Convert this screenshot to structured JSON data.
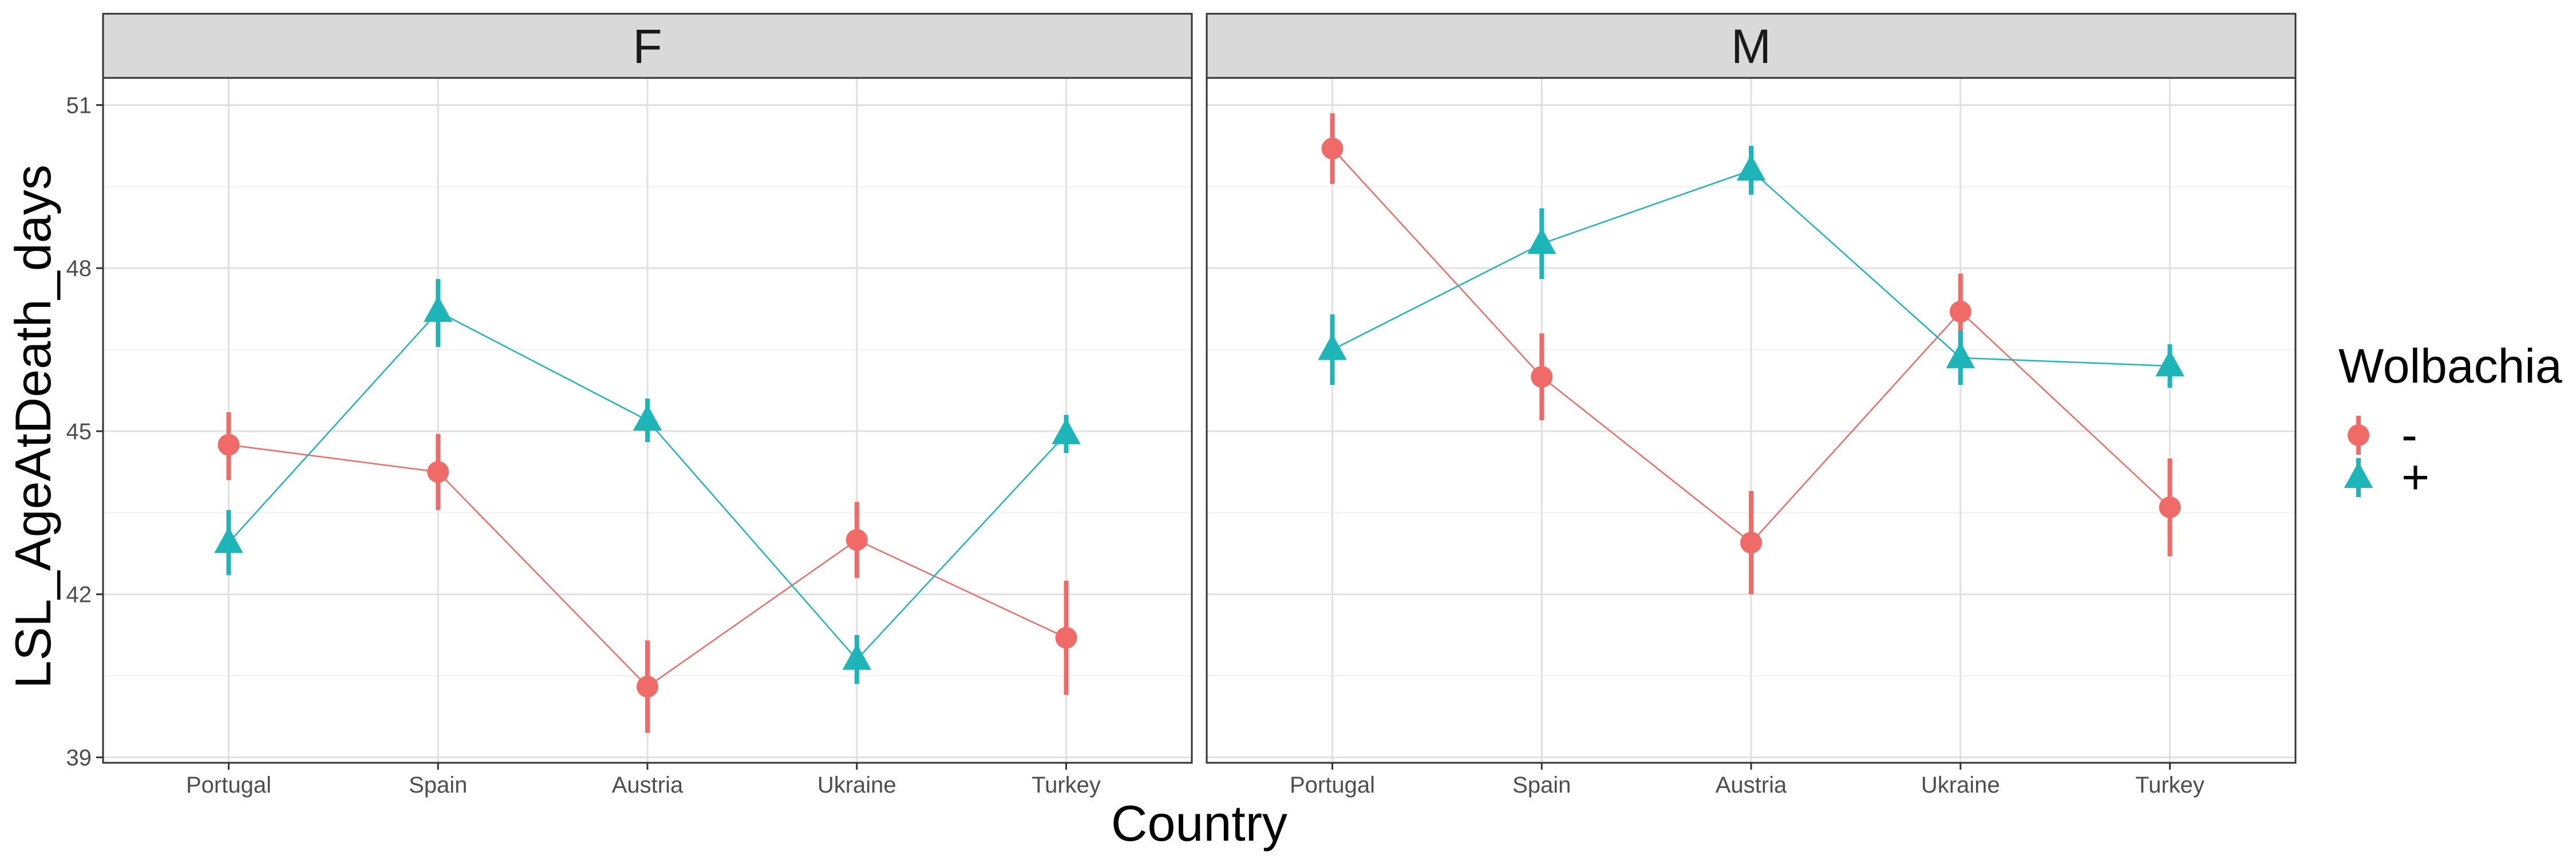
{
  "chart_data": {
    "type": "line",
    "xlabel": "Country",
    "ylabel": "LSL_AgeAtDeath_days",
    "categories": [
      "Portugal",
      "Spain",
      "Austria",
      "Ukraine",
      "Turkey"
    ],
    "ylim": [
      38.9,
      51.5
    ],
    "yticks": [
      39,
      42,
      45,
      48,
      51
    ],
    "grid": true,
    "facets": [
      "F",
      "M"
    ],
    "legend": {
      "title": "Wolbachia",
      "position": "right",
      "entries": [
        {
          "label": "-",
          "color": "#F06B68",
          "shape": "circle"
        },
        {
          "label": "+",
          "color": "#1DB5B8",
          "shape": "triangle"
        }
      ]
    },
    "series": [
      {
        "facet": "F",
        "group": "-",
        "color": "#F06B68",
        "shape": "circle",
        "values": [
          44.75,
          44.25,
          40.3,
          43.0,
          41.2
        ],
        "lower": [
          44.1,
          43.55,
          39.45,
          42.3,
          40.15
        ],
        "upper": [
          45.35,
          44.95,
          41.15,
          43.7,
          42.25
        ]
      },
      {
        "facet": "F",
        "group": "+",
        "color": "#1DB5B8",
        "shape": "triangle",
        "values": [
          42.95,
          47.2,
          45.2,
          40.8,
          44.95
        ],
        "lower": [
          42.35,
          46.55,
          44.8,
          40.35,
          44.6
        ],
        "upper": [
          43.55,
          47.8,
          45.6,
          41.25,
          45.3
        ]
      },
      {
        "facet": "M",
        "group": "-",
        "color": "#F06B68",
        "shape": "circle",
        "values": [
          50.2,
          46.0,
          42.95,
          47.2,
          43.6
        ],
        "lower": [
          49.55,
          45.2,
          42.0,
          46.5,
          42.7
        ],
        "upper": [
          50.85,
          46.8,
          43.9,
          47.9,
          44.5
        ]
      },
      {
        "facet": "M",
        "group": "+",
        "color": "#1DB5B8",
        "shape": "triangle",
        "values": [
          46.5,
          48.45,
          49.8,
          46.35,
          46.2
        ],
        "lower": [
          45.85,
          47.8,
          49.35,
          45.85,
          45.8
        ],
        "upper": [
          47.15,
          49.1,
          50.25,
          46.85,
          46.6
        ]
      }
    ]
  }
}
